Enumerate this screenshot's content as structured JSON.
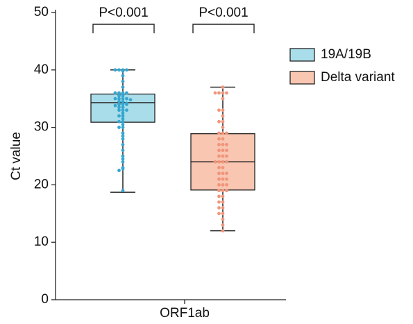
{
  "chart_data": {
    "type": "box",
    "ylabel": "Ct value",
    "categories": [
      "ORF1ab"
    ],
    "ylim": [
      0,
      50
    ],
    "yticks": [
      0,
      10,
      20,
      30,
      40,
      50
    ],
    "annotations": [
      "P<0.001",
      "P<0.001"
    ],
    "series": [
      {
        "name": "19A/19B",
        "color": "#a9dde9",
        "point_color": "#35a6cf",
        "box": {
          "min": 18.7,
          "q1": 30.9,
          "median": 34.3,
          "q3": 35.8,
          "max": 40
        },
        "points": [
          40,
          40,
          40,
          40,
          39.8,
          39,
          38,
          37,
          36,
          36,
          36,
          36,
          35.8,
          35.5,
          35.5,
          35,
          35,
          35,
          35,
          34.8,
          34.5,
          34.5,
          34.2,
          34,
          34,
          34,
          33.8,
          33.5,
          33.5,
          33,
          33,
          33,
          32.5,
          32,
          32,
          31.5,
          31,
          31,
          30.5,
          30,
          30,
          29,
          28.5,
          28,
          27,
          26,
          25,
          24.5,
          24,
          23,
          22.8,
          22.5,
          19
        ]
      },
      {
        "name": "Delta variant",
        "color": "#f9c6b2",
        "point_color": "#f0957a",
        "box": {
          "min": 12,
          "q1": 19.1,
          "median": 24,
          "q3": 28.9,
          "max": 37
        },
        "points": [
          37,
          36,
          36,
          36,
          36,
          35,
          33,
          33,
          32,
          31,
          31,
          30,
          29,
          29,
          29,
          28,
          28,
          27,
          27,
          27,
          26,
          26,
          26,
          25,
          25,
          25,
          24,
          24,
          24,
          24,
          23,
          23,
          22,
          22,
          22,
          21,
          21,
          21,
          20,
          20,
          20,
          19,
          19,
          19,
          18,
          18,
          17,
          17,
          16,
          16,
          15,
          15,
          14,
          13,
          12
        ]
      }
    ]
  }
}
